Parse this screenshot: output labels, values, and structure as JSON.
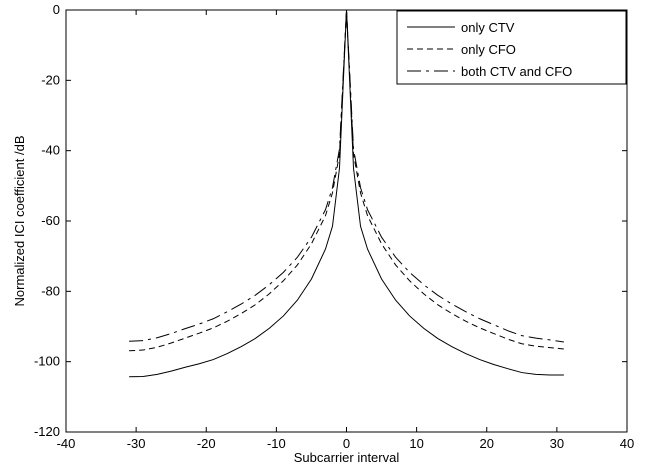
{
  "chart_data": {
    "type": "line",
    "title": "",
    "xlabel": "Subcarrier interval",
    "ylabel": "Normalized ICI coefficient /dB",
    "xlim": [
      -40,
      40
    ],
    "ylim": [
      -120,
      0
    ],
    "xticks": [
      -40,
      -30,
      -20,
      -10,
      0,
      10,
      20,
      30,
      40
    ],
    "yticks": [
      0,
      -20,
      -40,
      -60,
      -80,
      -100,
      -120
    ],
    "grid": false,
    "legend_position": "top-right",
    "x": [
      -31,
      -29,
      -27,
      -25,
      -23,
      -21,
      -19,
      -17,
      -15,
      -13,
      -11,
      -9,
      -7,
      -5,
      -3,
      -2,
      -1,
      0,
      1,
      2,
      3,
      5,
      7,
      9,
      11,
      13,
      15,
      17,
      19,
      21,
      23,
      25,
      27,
      29,
      31
    ],
    "series": [
      {
        "name": "only CTV",
        "color": "#000000",
        "dash": "solid",
        "values": [
          -104.3,
          -104.2,
          -103.6,
          -102.7,
          -101.6,
          -100.6,
          -99.4,
          -97.7,
          -95.7,
          -93.4,
          -90.5,
          -87.0,
          -82.5,
          -76.5,
          -68.0,
          -61.5,
          -45.0,
          0,
          -45.0,
          -61.5,
          -68.0,
          -76.5,
          -82.5,
          -87.0,
          -90.5,
          -93.4,
          -95.7,
          -97.7,
          -99.4,
          -100.8,
          -102.0,
          -103.1,
          -103.6,
          -103.8,
          -103.8
        ]
      },
      {
        "name": "only CFO",
        "color": "#000000",
        "dash": "dashed",
        "values": [
          -96.9,
          -96.7,
          -95.9,
          -94.7,
          -93.3,
          -91.9,
          -90.4,
          -88.5,
          -86.3,
          -83.8,
          -80.7,
          -77.0,
          -72.5,
          -66.5,
          -58.5,
          -52.0,
          -41.0,
          0,
          -41.0,
          -52.0,
          -58.5,
          -66.5,
          -72.5,
          -77.0,
          -80.7,
          -83.8,
          -86.3,
          -88.5,
          -90.4,
          -92.0,
          -93.6,
          -94.9,
          -95.6,
          -96.0,
          -96.4
        ]
      },
      {
        "name": "both CTV and CFO",
        "color": "#000000",
        "dash": "dashdot",
        "values": [
          -94.2,
          -94.0,
          -93.2,
          -92.0,
          -90.6,
          -89.3,
          -87.8,
          -85.8,
          -83.6,
          -81.1,
          -78.1,
          -74.6,
          -70.3,
          -64.6,
          -56.8,
          -50.5,
          -39.5,
          0,
          -39.5,
          -50.5,
          -56.8,
          -64.6,
          -70.3,
          -74.6,
          -78.1,
          -81.1,
          -83.6,
          -85.8,
          -87.8,
          -89.5,
          -91.2,
          -92.6,
          -93.3,
          -93.8,
          -94.4
        ]
      }
    ]
  }
}
